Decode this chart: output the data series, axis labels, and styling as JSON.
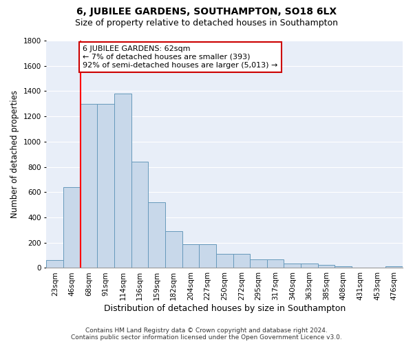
{
  "title": "6, JUBILEE GARDENS, SOUTHAMPTON, SO18 6LX",
  "subtitle": "Size of property relative to detached houses in Southampton",
  "xlabel": "Distribution of detached houses by size in Southampton",
  "ylabel": "Number of detached properties",
  "categories": [
    "23sqm",
    "46sqm",
    "68sqm",
    "91sqm",
    "114sqm",
    "136sqm",
    "159sqm",
    "182sqm",
    "204sqm",
    "227sqm",
    "250sqm",
    "272sqm",
    "295sqm",
    "317sqm",
    "340sqm",
    "363sqm",
    "385sqm",
    "408sqm",
    "431sqm",
    "453sqm",
    "476sqm"
  ],
  "values": [
    60,
    640,
    1300,
    1300,
    1380,
    840,
    520,
    290,
    185,
    185,
    110,
    110,
    70,
    70,
    35,
    35,
    25,
    15,
    5,
    5,
    15
  ],
  "bar_color": "#c8d8ea",
  "bar_edge_color": "#6699bb",
  "background_color": "#e8eef8",
  "grid_color": "#ffffff",
  "ylim": [
    0,
    1800
  ],
  "yticks": [
    0,
    200,
    400,
    600,
    800,
    1000,
    1200,
    1400,
    1600,
    1800
  ],
  "red_line_x": 1.5,
  "annotation_line1": "6 JUBILEE GARDENS: 62sqm",
  "annotation_line2": "← 7% of detached houses are smaller (393)",
  "annotation_line3": "92% of semi-detached houses are larger (5,013) →",
  "annotation_box_color": "#ffffff",
  "annotation_box_edge": "#cc0000",
  "footnote": "Contains HM Land Registry data © Crown copyright and database right 2024.\nContains public sector information licensed under the Open Government Licence v3.0.",
  "title_fontsize": 10,
  "subtitle_fontsize": 9,
  "tick_fontsize": 7.5,
  "ylabel_fontsize": 8.5,
  "xlabel_fontsize": 9,
  "annot_fontsize": 8,
  "footnote_fontsize": 6.5
}
